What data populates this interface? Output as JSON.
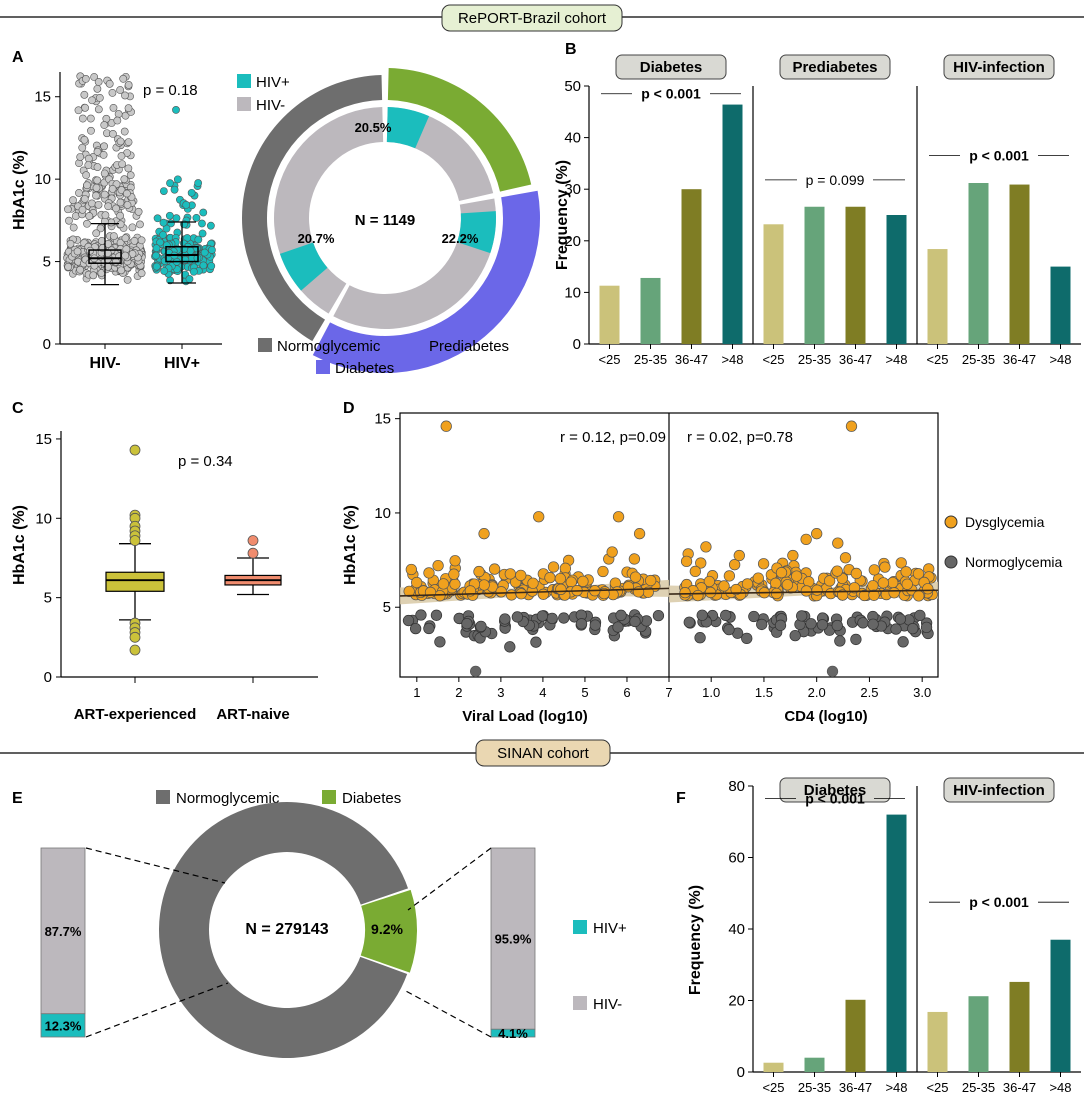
{
  "colors": {
    "hiv_pos": "#1bbdbd",
    "hiv_neg": "#bcb8bd",
    "normo": "#6e6e6e",
    "prediab": "#7aab33",
    "diab": "#6b67e8",
    "age1": "#cbc27a",
    "age2": "#66a47a",
    "age3": "#7f7d24",
    "age4": "#0e6b6b",
    "dysgly": "#f0a11e",
    "normgly": "#666666",
    "boxC1": "#cbc23a",
    "boxC2": "#f08c6e",
    "banner1": "#e6f0d3",
    "banner2": "#ead7b2"
  },
  "banners": {
    "top": "RePORT-Brazil cohort",
    "bottom": "SINAN cohort"
  },
  "panel_labels": {
    "A": "A",
    "B": "B",
    "C": "C",
    "D": "D",
    "E": "E",
    "F": "F"
  },
  "chart_data": [
    {
      "id": "A_box",
      "type": "scatter",
      "ylabel": "HbA1c (%)",
      "ylim": [
        0,
        16.5
      ],
      "yticks": [
        0,
        5,
        10,
        15
      ],
      "categories": [
        "HIV-",
        "HIV+"
      ],
      "box": [
        {
          "group": "HIV-",
          "min": 3.6,
          "q1": 4.9,
          "median": 5.2,
          "q3": 5.7,
          "max": 7.3
        },
        {
          "group": "HIV+",
          "min": 3.7,
          "q1": 5.0,
          "median": 5.4,
          "q3": 5.9,
          "max": 7.4
        }
      ],
      "annotation": "p = 0.18"
    },
    {
      "id": "A_donut",
      "type": "pie",
      "center_label": "N = 1149",
      "outer": [
        {
          "name": "Prediabetes",
          "value": 21.8
        },
        {
          "name": "Diabetes",
          "value": 36.3
        },
        {
          "name": "Normoglycemic",
          "value": 41.9
        }
      ],
      "inner_hiv_pos": [
        {
          "ring": "Prediabetes",
          "label": "20.5%"
        },
        {
          "ring": "Diabetes",
          "label": "22.2%"
        },
        {
          "ring": "Normoglycemic",
          "label": "20.7%"
        }
      ],
      "legend_hiv": [
        "HIV+",
        "HIV-"
      ],
      "legend_glycemia": [
        "Normoglycemic",
        "Prediabetes",
        "Diabetes"
      ]
    },
    {
      "id": "B",
      "type": "bar",
      "ylabel": "Frequency (%)",
      "ylim": [
        0,
        50
      ],
      "yticks": [
        0,
        10,
        20,
        30,
        40,
        50
      ],
      "categories": [
        "<25",
        "25-35",
        "36-47",
        ">48"
      ],
      "groups": [
        {
          "name": "Diabetes",
          "values": [
            11.3,
            12.8,
            30.0,
            46.4
          ],
          "annotation": "p < 0.001",
          "bold": true,
          "ann_y": 48.5
        },
        {
          "name": "Prediabetes",
          "values": [
            23.2,
            26.6,
            26.6,
            25.0
          ],
          "annotation": "p = 0.099",
          "bold": false,
          "ann_y": 31.8
        },
        {
          "name": "HIV-infection",
          "values": [
            18.4,
            31.2,
            30.9,
            15.0
          ],
          "annotation": "p < 0.001",
          "bold": true,
          "ann_y": 36.5
        }
      ]
    },
    {
      "id": "C",
      "type": "scatter",
      "ylabel": "HbA1c (%)",
      "ylim": [
        0,
        15.5
      ],
      "yticks": [
        0,
        5,
        10,
        15
      ],
      "categories": [
        "ART-experienced",
        "ART-naive"
      ],
      "box": [
        {
          "group": "ART-experienced",
          "min": 3.6,
          "q1": 5.4,
          "median": 6.1,
          "q3": 6.6,
          "max": 8.4
        },
        {
          "group": "ART-naive",
          "min": 5.2,
          "q1": 5.8,
          "median": 6.1,
          "q3": 6.4,
          "max": 7.5
        }
      ],
      "outliers": [
        {
          "group": "ART-experienced",
          "values": [
            14.3,
            10.2,
            10.0,
            9.5,
            9.2,
            8.9,
            8.6,
            3.4,
            3.1,
            2.8,
            2.5,
            1.7
          ]
        },
        {
          "group": "ART-naive",
          "values": [
            8.6,
            7.8
          ]
        }
      ],
      "annotation": "p = 0.34"
    },
    {
      "id": "D_left",
      "type": "scatter",
      "ylabel": "HbA1c (%)",
      "xlabel": "Viral Load (log10)",
      "xlim": [
        0.6,
        7.0
      ],
      "ylim": [
        1.3,
        15.3
      ],
      "xticks": [
        1,
        2,
        3,
        4,
        5,
        6,
        7
      ],
      "yticks": [
        5,
        10,
        15
      ],
      "annotation": "r = 0.12, p=0.09",
      "trend": {
        "x": [
          0.6,
          7.0
        ],
        "y": [
          5.6,
          6.0
        ]
      },
      "highlight_points": [
        [
          1.7,
          14.6
        ],
        [
          2.6,
          8.9
        ],
        [
          3.9,
          9.8
        ],
        [
          5.8,
          9.8
        ],
        [
          6.3,
          8.9
        ],
        [
          2.4,
          1.6
        ]
      ]
    },
    {
      "id": "D_right",
      "type": "scatter",
      "xlabel": "CD4 (log10)",
      "xlim": [
        0.6,
        3.15
      ],
      "ylim": [
        1.3,
        15.3
      ],
      "xticks": [
        "1.0",
        "1.5",
        "2.0",
        "2.5",
        "3.0"
      ],
      "annotation": "r = 0.02, p=0.78",
      "trend": {
        "x": [
          0.6,
          3.15
        ],
        "y": [
          5.7,
          5.9
        ]
      },
      "highlight_points": [
        [
          2.33,
          14.6
        ],
        [
          2.0,
          8.9
        ],
        [
          1.9,
          8.6
        ],
        [
          2.2,
          8.4
        ],
        [
          0.95,
          8.2
        ],
        [
          2.15,
          1.6
        ]
      ]
    },
    {
      "id": "E",
      "type": "pie",
      "center_label": "N = 279143",
      "slices": [
        {
          "name": "Normoglycemic",
          "value": 90.8
        },
        {
          "name": "Diabetes",
          "value": 9.2,
          "label": "9.2%"
        }
      ],
      "left_bar": [
        {
          "name": "HIV-",
          "label": "87.7%",
          "value": 87.7
        },
        {
          "name": "HIV+",
          "label": "12.3%",
          "value": 12.3
        }
      ],
      "right_bar": [
        {
          "name": "HIV-",
          "label": "95.9%",
          "value": 95.9
        },
        {
          "name": "HIV+",
          "label": "4.1%",
          "value": 4.1
        }
      ],
      "legend": [
        "Normoglycemic",
        "Diabetes"
      ],
      "legend_hiv": [
        "HIV+",
        "HIV-"
      ]
    },
    {
      "id": "F",
      "type": "bar",
      "ylabel": "Frequency (%)",
      "ylim": [
        0,
        80
      ],
      "yticks": [
        0,
        20,
        40,
        60,
        80
      ],
      "categories": [
        "<25",
        "25-35",
        "36-47",
        ">48"
      ],
      "groups": [
        {
          "name": "Diabetes",
          "values": [
            2.6,
            4.0,
            20.2,
            72.0
          ],
          "annotation": "p < 0.001",
          "bold": true,
          "ann_y": 76.5
        },
        {
          "name": "HIV-infection",
          "values": [
            16.8,
            21.2,
            25.2,
            37.0
          ],
          "annotation": "p < 0.001",
          "bold": true,
          "ann_y": 47.5
        }
      ]
    }
  ],
  "legend_D": [
    "Dysglycemia",
    "Normoglycemia"
  ]
}
